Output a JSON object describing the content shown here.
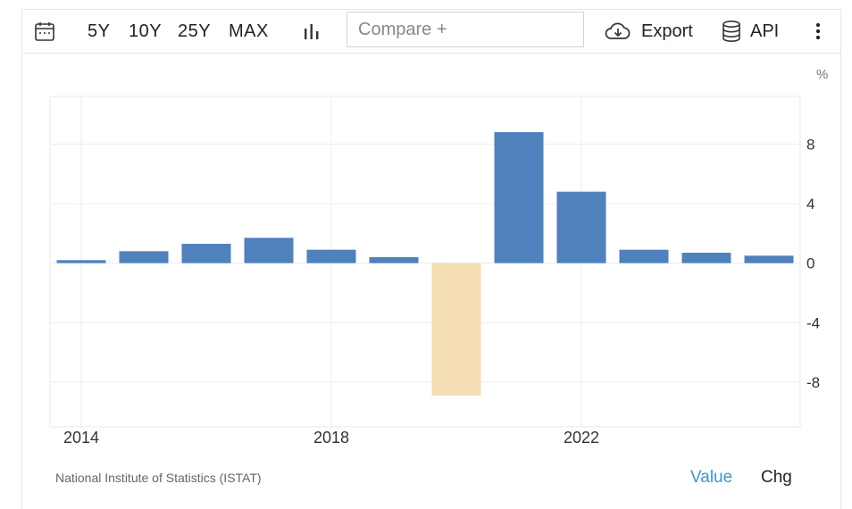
{
  "toolbar": {
    "ranges": [
      "5Y",
      "10Y",
      "25Y",
      "MAX"
    ],
    "compare_placeholder": "Compare +",
    "export_label": "Export",
    "api_label": "API",
    "icons": [
      "calendar-icon",
      "bar-chart-icon",
      "cloud-download-icon",
      "database-icon",
      "more-vertical-icon"
    ]
  },
  "chart_data": {
    "type": "bar",
    "ylabel": "%",
    "ylim": [
      -11,
      11.2
    ],
    "yticks": [
      8,
      4,
      0,
      -4,
      -8
    ],
    "xtick_labels": [
      "2014",
      "2018",
      "2022"
    ],
    "categories": [
      "2014",
      "2015",
      "2016",
      "2017",
      "2018",
      "2019",
      "2020",
      "2021",
      "2022",
      "2023",
      "2024",
      "2025"
    ],
    "values": [
      0.2,
      0.8,
      1.3,
      1.7,
      0.9,
      0.4,
      -8.9,
      8.8,
      4.8,
      0.9,
      0.7,
      0.5
    ],
    "colors": {
      "positive": "#4f81bd",
      "negative": "#f5deb3"
    },
    "grid": true,
    "y_axis_position": "right"
  },
  "footer": {
    "source": "National Institute of Statistics (ISTAT)",
    "value_label": "Value",
    "chg_label": "Chg",
    "value_color": "#3a97d8"
  }
}
